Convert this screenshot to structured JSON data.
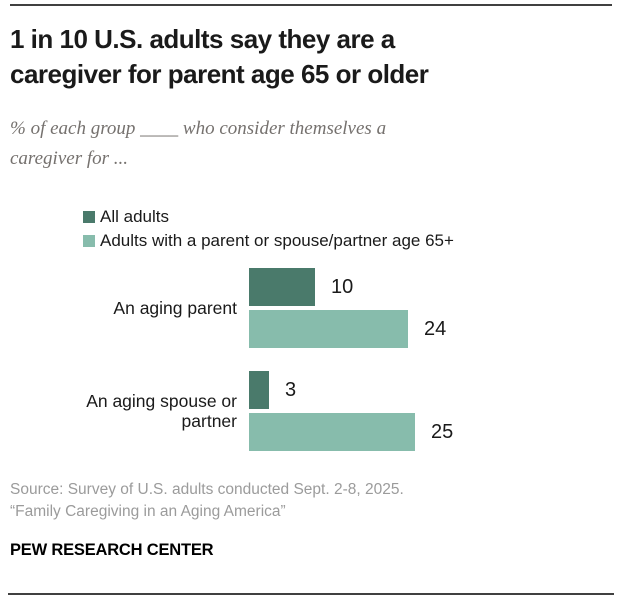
{
  "header": {
    "title_lines": [
      "1 in 10 U.S. adults say they are a",
      "caregiver for parent age 65 or older"
    ],
    "subtitle_lines": [
      "% of each group ____ who consider themselves a",
      "caregiver for ..."
    ]
  },
  "chart_data": {
    "type": "bar",
    "orientation": "horizontal",
    "unit": "%",
    "categories": [
      "An aging parent",
      "An aging spouse or partner"
    ],
    "series": [
      {
        "name": "All adults",
        "color": "#4a7a6b",
        "values": [
          10,
          3
        ]
      },
      {
        "name": "Adults with a parent or spouse/partner age 65+",
        "color": "#87bcac",
        "values": [
          24,
          25
        ]
      }
    ],
    "value_labels_shown": true,
    "legend_position": "top",
    "axis_shown": false
  },
  "footer": {
    "source_lines": [
      "Source: Survey of U.S. adults conducted Sept. 2-8, 2025.",
      "“Family Caregiving in an Aging America”"
    ],
    "brand": "PEW RESEARCH CENTER"
  }
}
